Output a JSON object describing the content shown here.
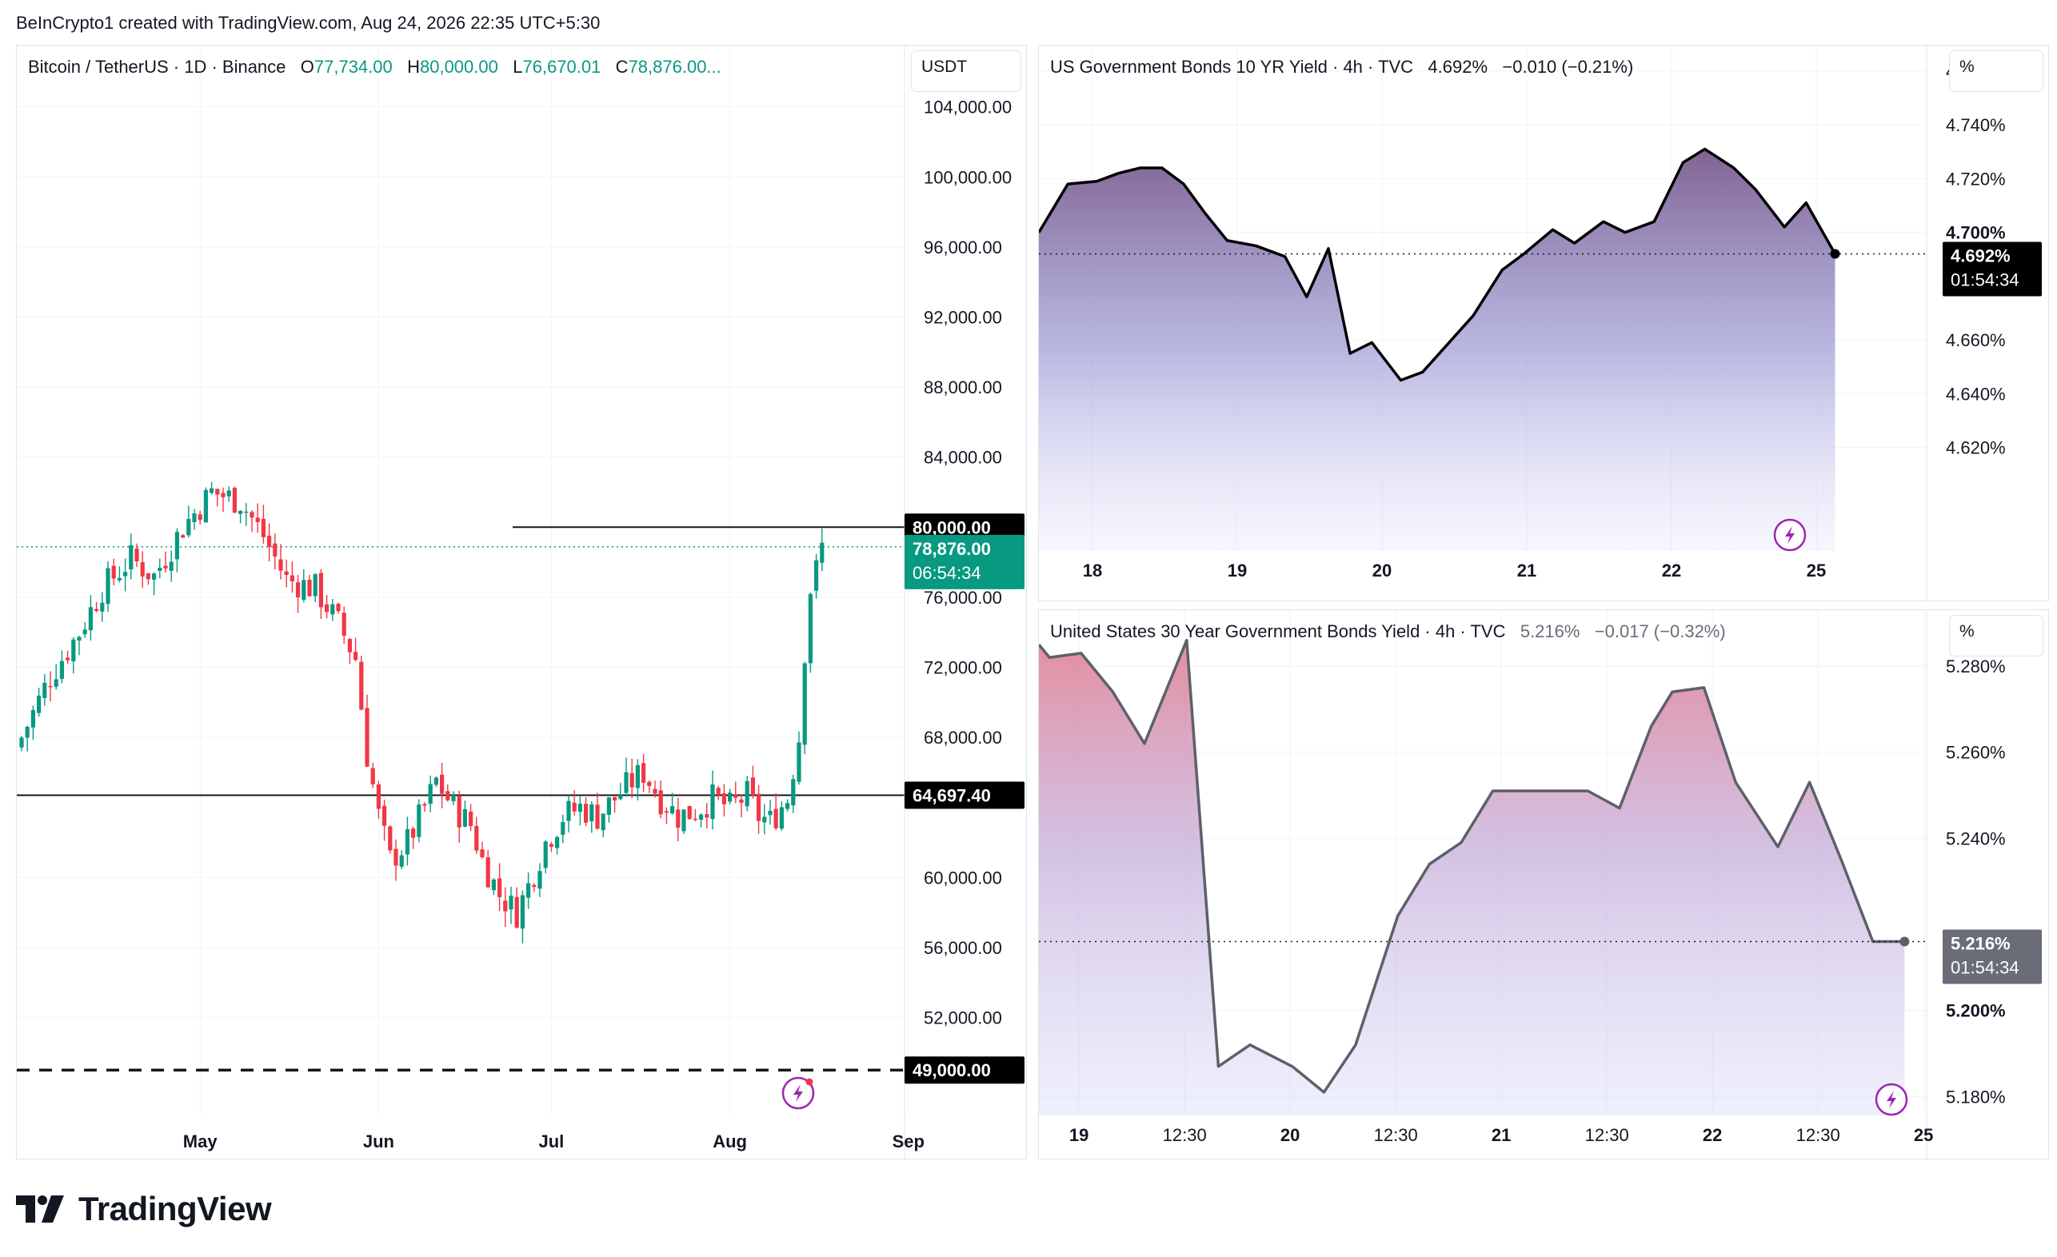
{
  "header": {
    "created_line": "BeInCrypto1 created with TradingView.com, Aug 24, 2026 22:35 UTC+5:30"
  },
  "brand": {
    "name": "TradingView"
  },
  "colors": {
    "up": "#089981",
    "down": "#f23645",
    "text": "#131722",
    "grid": "#f0f3fa",
    "accent_purple": "#9c27b0"
  },
  "btc": {
    "title": "Bitcoin / TetherUS · 1D · Binance",
    "o_label": "O",
    "o": "77,734.00",
    "h_label": "H",
    "h": "80,000.00",
    "l_label": "L",
    "l": "76,670.01",
    "c_label": "C",
    "c": "78,876.00...",
    "unit": "USDT",
    "last_price": "78,876.00",
    "countdown": "06:54:34",
    "level_high": "80,000.00",
    "level_mid": "64,697.40",
    "level_low": "49,000.00"
  },
  "us10": {
    "title": "US Government Bonds 10 YR Yield · 4h · TVC",
    "value": "4.692%",
    "change": "−0.010 (−0.21%)",
    "unit": "%",
    "last_label": "4.692%",
    "countdown": "01:54:34"
  },
  "us30": {
    "title": "United States 30 Year Government Bonds Yield · 4h · TVC",
    "value": "5.216%",
    "change": "−0.017 (−0.32%)",
    "unit": "%",
    "last_label": "5.216%",
    "countdown": "01:54:34"
  },
  "chart_data": [
    {
      "type": "candlestick",
      "title": "Bitcoin / TetherUS · 1D · Binance",
      "unit": "USDT",
      "ylim": [
        46500,
        107500
      ],
      "yticks": [
        52000,
        56000,
        60000,
        68000,
        72000,
        76000,
        84000,
        88000,
        92000,
        96000,
        100000,
        104000
      ],
      "ytick_labels": [
        "52,000.00",
        "56,000.00",
        "60,000.00",
        "68,000.00",
        "72,000.00",
        "76,000.00",
        "84,000.00",
        "88,000.00",
        "92,000.00",
        "96,000.00",
        "100,000.00",
        "104,000.00"
      ],
      "x_labels": [
        "May",
        "Jun",
        "Jul",
        "Aug",
        "Sep"
      ],
      "x_label_day_index": [
        31,
        62,
        92,
        123,
        154
      ],
      "horizontal_levels": [
        80000,
        64697.4,
        49000
      ],
      "last_close": 78876,
      "close_path": [
        [
          0,
          68000
        ],
        [
          5,
          71500
        ],
        [
          10,
          74000
        ],
        [
          14,
          76500
        ],
        [
          19,
          78200
        ],
        [
          23,
          77200
        ],
        [
          28,
          80000
        ],
        [
          33,
          82000
        ],
        [
          38,
          81500
        ],
        [
          42,
          79500
        ],
        [
          46,
          77000
        ],
        [
          51,
          76500
        ],
        [
          55,
          74500
        ],
        [
          58,
          72500
        ],
        [
          60,
          67000
        ],
        [
          62,
          63500
        ],
        [
          64,
          61000
        ],
        [
          67,
          62000
        ],
        [
          70,
          64000
        ],
        [
          72,
          65500
        ],
        [
          75,
          64000
        ],
        [
          78,
          63000
        ],
        [
          80,
          61000
        ],
        [
          83,
          59000
        ],
        [
          86,
          58000
        ],
        [
          88,
          59500
        ],
        [
          91,
          62000
        ],
        [
          94,
          63500
        ],
        [
          97,
          64000
        ],
        [
          100,
          63500
        ],
        [
          103,
          64500
        ],
        [
          106,
          65500
        ],
        [
          108,
          66000
        ],
        [
          111,
          64500
        ],
        [
          114,
          63500
        ],
        [
          117,
          63800
        ],
        [
          120,
          64500
        ],
        [
          123,
          64000
        ],
        [
          126,
          64700
        ],
        [
          128,
          63500
        ],
        [
          130,
          63200
        ],
        [
          133,
          64500
        ],
        [
          135,
          68000
        ],
        [
          136,
          73000
        ],
        [
          137,
          76500
        ],
        [
          138,
          77500
        ],
        [
          139,
          78876
        ]
      ],
      "candle_count": 140
    },
    {
      "type": "area",
      "title": "US Government Bonds 10 YR Yield · 4h · TVC",
      "unit": "%",
      "ylim": [
        4.6055,
        4.7695
      ],
      "yticks": [
        4.62,
        4.64,
        4.66,
        4.7,
        4.72,
        4.74,
        4.76
      ],
      "ytick_labels": [
        "4.620%",
        "4.640%",
        "4.660%",
        "4.700%",
        "4.720%",
        "4.740%",
        "4.760%"
      ],
      "x_labels": [
        "18",
        "19",
        "20",
        "21",
        "22",
        "25"
      ],
      "x_label_pos": [
        0.37,
        1.37,
        2.37,
        3.37,
        4.37,
        5.37
      ],
      "x": [
        0,
        0.2,
        0.4,
        0.55,
        0.7,
        0.85,
        1.0,
        1.15,
        1.3,
        1.5,
        1.7,
        1.85,
        2.0,
        2.15,
        2.3,
        2.5,
        2.65,
        2.8,
        3.0,
        3.2,
        3.35,
        3.55,
        3.7,
        3.9,
        4.05,
        4.25,
        4.45,
        4.6,
        4.8,
        4.95,
        5.15,
        5.3,
        5.5
      ],
      "y": [
        4.7,
        4.718,
        4.719,
        4.722,
        4.724,
        4.724,
        4.718,
        4.707,
        4.697,
        4.695,
        4.691,
        4.676,
        4.694,
        4.655,
        4.659,
        4.645,
        4.648,
        4.657,
        4.669,
        4.686,
        4.692,
        4.701,
        4.696,
        4.704,
        4.7,
        4.704,
        4.726,
        4.731,
        4.724,
        4.716,
        4.702,
        4.711,
        4.692
      ],
      "last_value": 4.692
    },
    {
      "type": "area",
      "title": "United States 30 Year Government Bonds Yield · 4h · TVC",
      "unit": "%",
      "ylim": [
        5.173,
        5.293
      ],
      "yticks": [
        5.18,
        5.2,
        5.24,
        5.26,
        5.28
      ],
      "ytick_labels": [
        "5.180%",
        "5.200%",
        "5.240%",
        "5.260%",
        "5.280%"
      ],
      "x_labels": [
        "19",
        "12:30",
        "20",
        "12:30",
        "21",
        "12:30",
        "22",
        "12:30",
        "25"
      ],
      "x_label_pos": [
        0.19,
        0.69,
        1.19,
        1.69,
        2.19,
        2.69,
        3.19,
        3.69,
        4.19
      ],
      "x": [
        0,
        0.05,
        0.2,
        0.35,
        0.5,
        0.7,
        0.85,
        1.0,
        1.2,
        1.35,
        1.5,
        1.7,
        1.85,
        2.0,
        2.15,
        2.3,
        2.45,
        2.6,
        2.75,
        2.9,
        3.0,
        3.15,
        3.3,
        3.5,
        3.65,
        3.8,
        3.95,
        4.1
      ],
      "y": [
        5.285,
        5.282,
        5.283,
        5.274,
        5.262,
        5.286,
        5.187,
        5.192,
        5.187,
        5.181,
        5.192,
        5.222,
        5.234,
        5.239,
        5.251,
        5.251,
        5.251,
        5.251,
        5.247,
        5.266,
        5.274,
        5.275,
        5.253,
        5.238,
        5.253,
        5.235,
        5.216,
        5.216
      ],
      "last_value": 5.216
    }
  ]
}
